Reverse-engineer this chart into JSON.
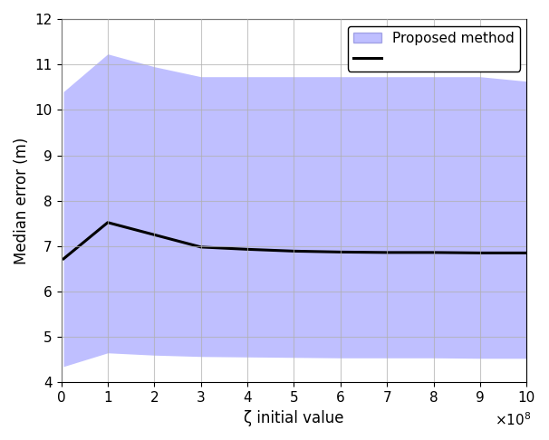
{
  "x": [
    5000000.0,
    100000000.0,
    200000000.0,
    300000000.0,
    400000000.0,
    500000000.0,
    600000000.0,
    700000000.0,
    800000000.0,
    900000000.0,
    1000000000.0
  ],
  "median": [
    6.72,
    7.52,
    7.25,
    6.98,
    6.93,
    6.89,
    6.87,
    6.86,
    6.86,
    6.85,
    6.85
  ],
  "upper": [
    10.4,
    11.23,
    10.95,
    10.73,
    10.73,
    10.73,
    10.73,
    10.73,
    10.73,
    10.73,
    10.63
  ],
  "lower": [
    4.35,
    4.65,
    4.6,
    4.57,
    4.56,
    4.55,
    4.54,
    4.54,
    4.54,
    4.53,
    4.53
  ],
  "fill_color": "#8080ff",
  "fill_alpha": 0.5,
  "line_color": "#000000",
  "line_width": 2.2,
  "xlabel": "ζ initial value",
  "ylabel": "Median error (m)",
  "xlim": [
    0,
    1000000000.0
  ],
  "ylim": [
    4,
    12
  ],
  "xticks": [
    0,
    100000000.0,
    200000000.0,
    300000000.0,
    400000000.0,
    500000000.0,
    600000000.0,
    700000000.0,
    800000000.0,
    900000000.0,
    1000000000.0
  ],
  "xticklabels": [
    "0",
    "1",
    "2",
    "3",
    "4",
    "5",
    "6",
    "7",
    "8",
    "9",
    "10"
  ],
  "yticks": [
    4,
    5,
    6,
    7,
    8,
    9,
    10,
    11,
    12
  ],
  "grid_color": "#b0b0b0",
  "grid_linestyle": "-",
  "grid_alpha": 0.7,
  "legend_label_fill": "Proposed method",
  "legend_label_line": "",
  "xlabel_fontsize": 12,
  "ylabel_fontsize": 12,
  "tick_fontsize": 11,
  "legend_fontsize": 11,
  "figwidth": 6.06,
  "figheight": 4.86,
  "dpi": 100
}
